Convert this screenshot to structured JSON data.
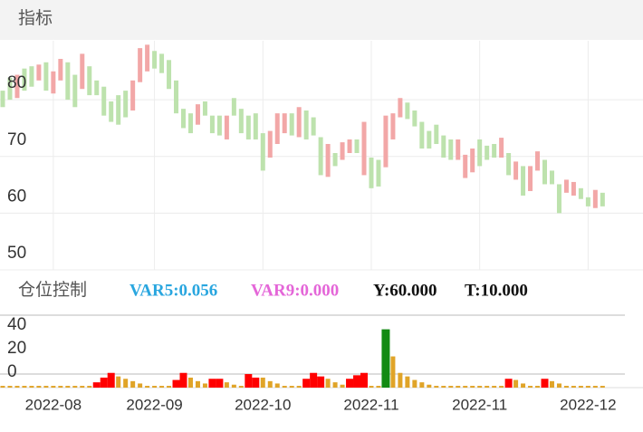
{
  "header": {
    "title": "指标"
  },
  "chart_data": [
    {
      "type": "candlestick",
      "open": [
        81.6,
        83.9,
        80.3,
        85.5,
        85.9,
        83.4,
        86.6,
        81.1,
        83.4,
        86.6,
        84.4,
        81.9,
        85.9,
        83.4,
        82.3,
        79.7,
        80.8,
        81.6,
        78.1,
        83.1,
        85.0,
        88.6,
        88.1,
        87.0,
        83.4,
        78.4,
        77.6,
        75.6,
        79.7,
        77.2,
        77.2,
        73.0,
        80.3,
        78.4,
        77.2,
        77.6,
        74.1,
        69.8,
        72.2,
        74.1,
        77.6,
        73.4,
        78.1,
        76.9,
        73.4,
        66.4,
        70.6,
        69.4,
        70.6,
        73.0,
        66.7,
        69.8,
        69.4,
        68.1,
        73.0,
        76.9,
        79.5,
        78.1,
        76.1,
        74.5,
        75.6,
        73.7,
        73.0,
        69.4,
        66.2,
        67.2,
        73.0,
        71.9,
        72.2,
        69.8,
        70.6,
        65.9,
        68.3,
        63.9,
        67.5,
        69.4,
        67.5,
        65.1,
        63.6,
        63.1,
        64.4,
        62.8,
        60.9,
        63.6
      ],
      "close": [
        78.7,
        80.0,
        84.4,
        81.6,
        82.3,
        86.2,
        81.6,
        85.0,
        87.2,
        80.0,
        78.7,
        88.1,
        80.8,
        80.8,
        77.2,
        76.1,
        75.6,
        76.9,
        83.4,
        89.1,
        89.7,
        85.5,
        84.7,
        81.9,
        77.6,
        75.0,
        74.1,
        79.2,
        77.2,
        74.1,
        73.7,
        77.2,
        77.2,
        74.1,
        73.0,
        73.0,
        67.5,
        74.5,
        77.6,
        77.6,
        73.7,
        78.7,
        73.0,
        73.7,
        66.7,
        72.2,
        68.3,
        72.5,
        73.0,
        70.6,
        76.1,
        64.4,
        64.7,
        77.2,
        77.6,
        80.3,
        76.6,
        75.3,
        71.4,
        71.4,
        72.2,
        69.8,
        69.4,
        73.0,
        70.3,
        71.4,
        68.3,
        69.4,
        69.8,
        73.3,
        66.7,
        69.1,
        63.1,
        68.3,
        70.9,
        65.1,
        65.1,
        60.0,
        65.9,
        65.5,
        62.5,
        61.2,
        64.1,
        61.2
      ],
      "up_color": "#f2a7a7",
      "down_color": "#bde2ad",
      "ylim": [
        50,
        90.4
      ],
      "yticks": [
        50,
        60,
        70,
        80
      ],
      "grid": true
    },
    {
      "type": "bar",
      "title": "仓位控制",
      "indicator_labels": [
        "VAR5:0.056",
        "VAR9:0.000",
        "Y:60.000",
        "T:10.000"
      ],
      "indicator_colors": [
        "#29a6df",
        "#e466d8",
        "#111111",
        "#111111"
      ],
      "categories": [
        null,
        null,
        null,
        null,
        null,
        null,
        null,
        "2022-08",
        null,
        null,
        null,
        null,
        null,
        null,
        null,
        null,
        null,
        null,
        null,
        null,
        null,
        "2022-09",
        null,
        null,
        null,
        null,
        null,
        null,
        null,
        null,
        null,
        null,
        null,
        null,
        null,
        null,
        "2022-10",
        null,
        null,
        null,
        null,
        null,
        null,
        null,
        null,
        null,
        null,
        null,
        null,
        null,
        null,
        "2022-11",
        null,
        null,
        null,
        null,
        null,
        null,
        null,
        null,
        null,
        null,
        null,
        null,
        null,
        null,
        "2022-11",
        null,
        null,
        null,
        null,
        null,
        null,
        null,
        null,
        null,
        null,
        null,
        null,
        null,
        null,
        "2022-12",
        null,
        null
      ],
      "series": [
        {
          "color": "#e0a428",
          "values": [
            -10,
            -10,
            -10,
            -10,
            -10,
            -10,
            -10,
            -10,
            -10,
            -10,
            -10,
            -10,
            -10,
            -10,
            -10,
            -10,
            -2,
            -4,
            -6,
            -8,
            -10,
            -10,
            -10,
            -10,
            -10,
            -10,
            -3,
            -6,
            -8,
            -10,
            -10,
            -7,
            -9,
            -10,
            -10,
            -10,
            -3,
            -6,
            -8,
            -10,
            -10,
            -10,
            -10,
            -10,
            -10,
            -4,
            -7,
            -9,
            -10,
            -10,
            -10,
            -10,
            -10,
            -10,
            15,
            1,
            -2,
            -5,
            -7,
            -9,
            -10,
            -10,
            -10,
            -10,
            -10,
            -10,
            -10,
            -10,
            -10,
            -10,
            -10,
            -5,
            -8,
            -10,
            -10,
            -10,
            -6,
            -8,
            -10,
            -10,
            -10,
            -10,
            -10,
            -10
          ]
        },
        {
          "color": "#ff0000",
          "values": [
            null,
            null,
            null,
            null,
            null,
            null,
            null,
            null,
            null,
            null,
            null,
            null,
            null,
            -7,
            -3,
            1,
            null,
            null,
            null,
            null,
            null,
            null,
            null,
            null,
            -5,
            1,
            null,
            null,
            null,
            -4,
            -4,
            null,
            null,
            null,
            0,
            -3,
            null,
            null,
            null,
            null,
            null,
            null,
            -4,
            1,
            -2,
            null,
            null,
            null,
            -4,
            -1,
            1,
            null,
            null,
            null,
            null,
            null,
            null,
            null,
            null,
            null,
            null,
            null,
            null,
            null,
            null,
            null,
            null,
            null,
            null,
            null,
            -4,
            null,
            null,
            null,
            null,
            -4,
            null,
            null,
            null,
            null,
            null,
            null,
            null,
            null
          ]
        },
        {
          "color": "#138a13",
          "values": [
            null,
            null,
            null,
            null,
            null,
            null,
            null,
            null,
            null,
            null,
            null,
            null,
            null,
            null,
            null,
            null,
            null,
            null,
            null,
            null,
            null,
            null,
            null,
            null,
            null,
            null,
            null,
            null,
            null,
            null,
            null,
            null,
            null,
            null,
            null,
            null,
            null,
            null,
            null,
            null,
            null,
            null,
            null,
            null,
            null,
            null,
            null,
            null,
            null,
            null,
            null,
            null,
            null,
            38,
            null,
            null,
            null,
            null,
            null,
            null,
            null,
            null,
            null,
            null,
            null,
            null,
            null,
            null,
            null,
            null,
            null,
            null,
            null,
            null,
            null,
            null,
            null,
            null,
            null,
            null,
            null,
            null,
            null,
            null
          ]
        }
      ],
      "ylim": [
        -11.5,
        52.3
      ],
      "yticks": [
        0,
        20,
        40
      ]
    }
  ]
}
